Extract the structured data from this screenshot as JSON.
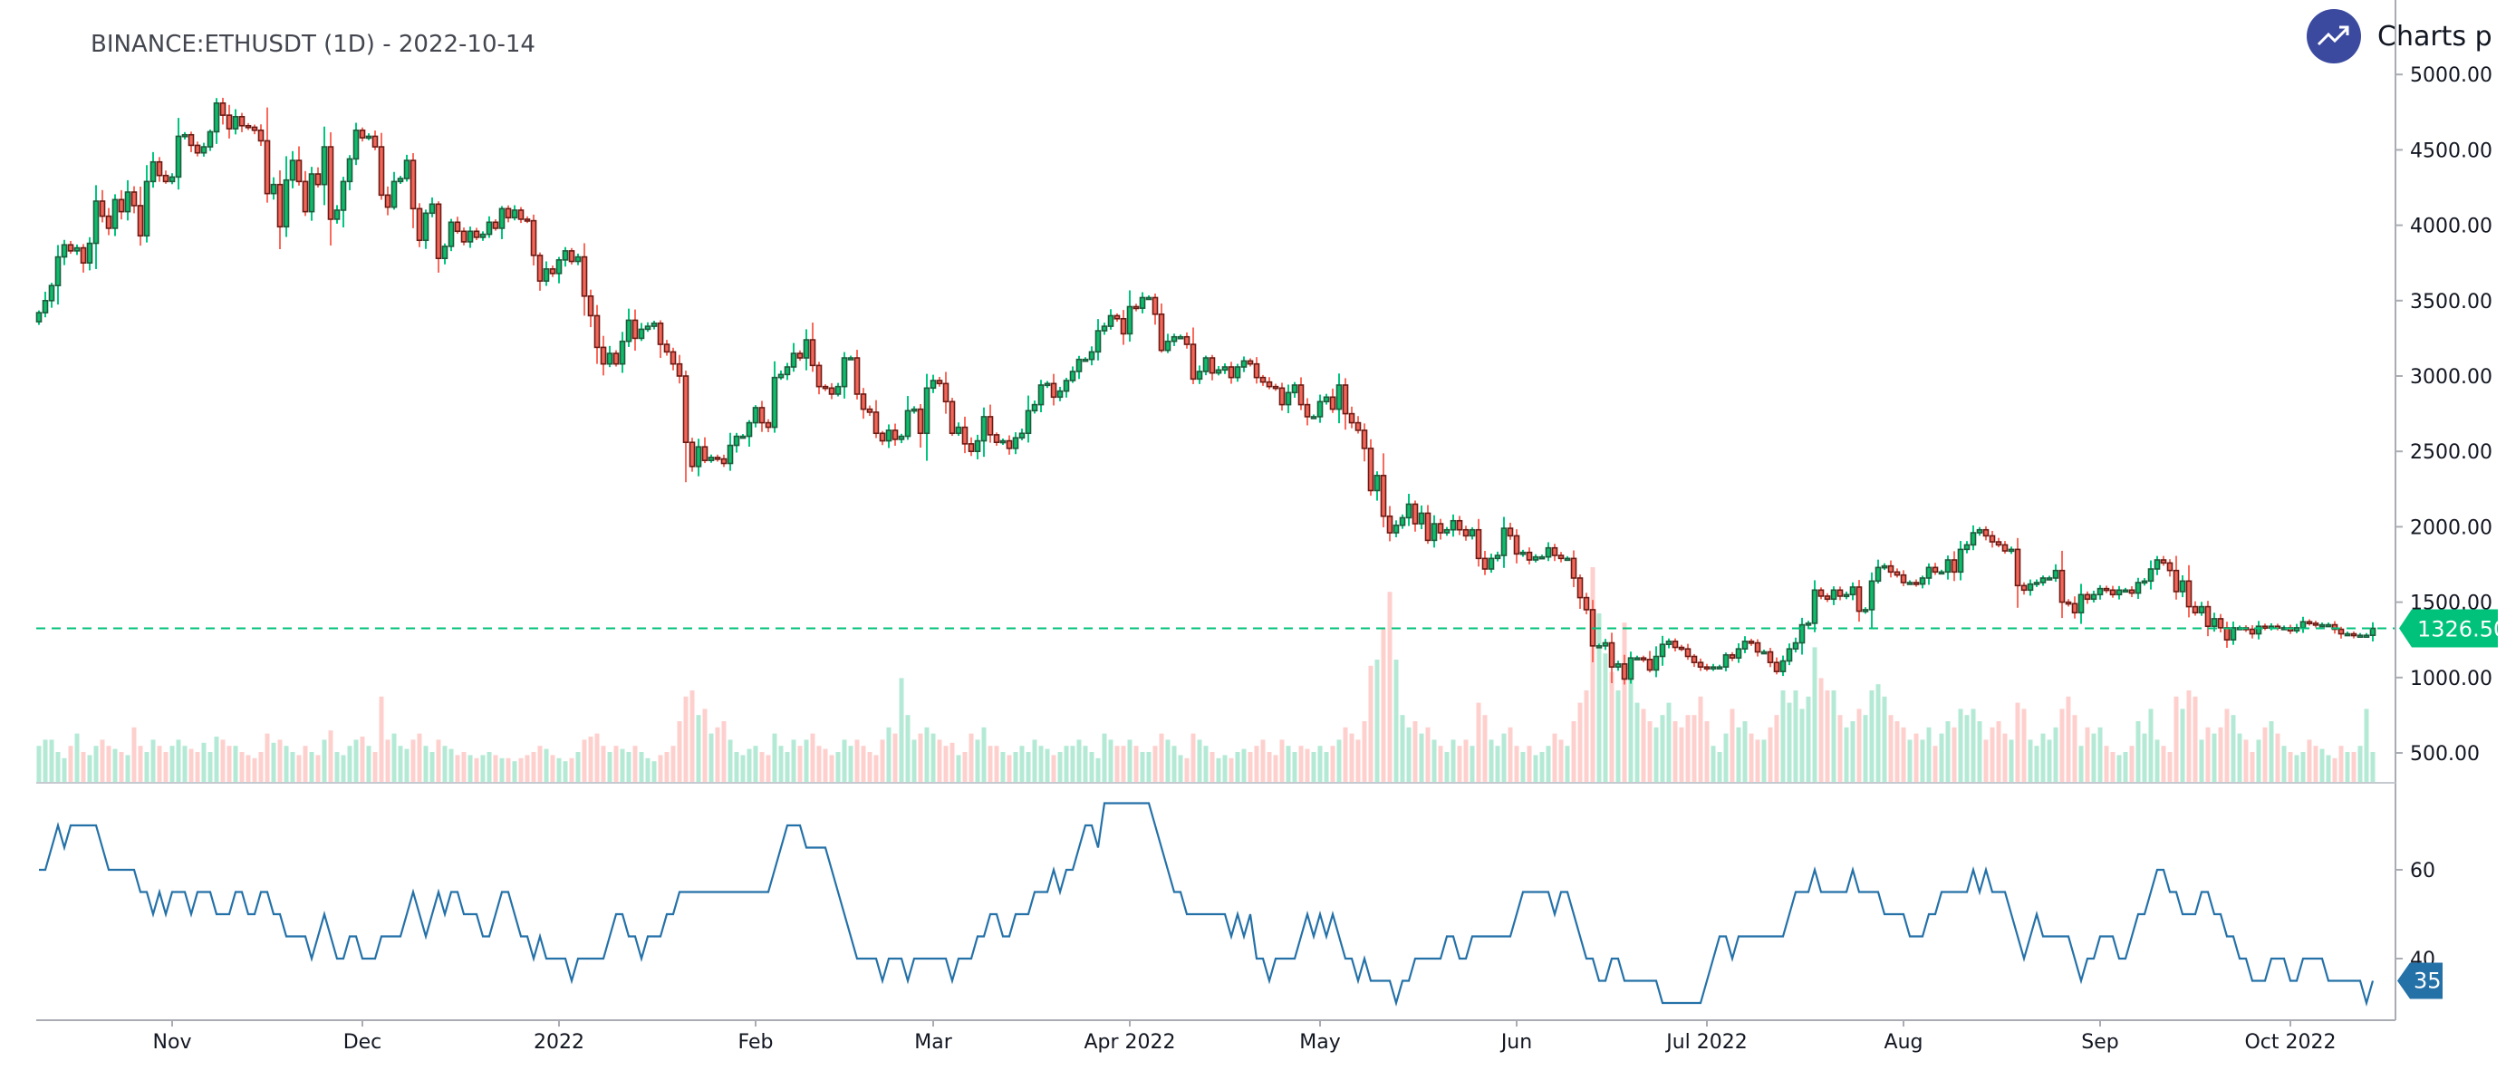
{
  "header": {
    "title": "BINANCE:ETHUSDT (1D) - 2022-10-14",
    "brand": "Charts p",
    "brand_icon": "trending-up-icon"
  },
  "colors": {
    "up": "#0ebc6c",
    "up_border": "#1d5b3c",
    "up_wick": "#00c67e",
    "down": "#f2675a",
    "down_border": "#6b1a14",
    "down_wick": "#f96a5c",
    "vol_up": "#b4ead5",
    "vol_down": "#fdd0ce",
    "indicator": "#2471a8",
    "last_price": "#00c27a",
    "axis": "#a9adb3",
    "brand": "#3b4a9f"
  },
  "chart_data": {
    "type": "candlestick",
    "symbol": "BINANCE:ETHUSDT",
    "interval": "1D",
    "start_date": "2021-10-11",
    "price_axis": {
      "ticks": [
        "5000.00",
        "4500.00",
        "4000.00",
        "3500.00",
        "3000.00",
        "2500.00",
        "2000.00",
        "1500.00",
        "1000.00",
        "500.00"
      ],
      "range": [
        500,
        5000
      ]
    },
    "last_price": "1326.50",
    "x_ticks": [
      {
        "label": "Nov",
        "date": "2021-11-01"
      },
      {
        "label": "Dec",
        "date": "2021-12-01"
      },
      {
        "label": "2022",
        "date": "2022-01-01"
      },
      {
        "label": "Feb",
        "date": "2022-02-01"
      },
      {
        "label": "Mar",
        "date": "2022-03-01"
      },
      {
        "label": "Apr 2022",
        "date": "2022-04-01"
      },
      {
        "label": "May",
        "date": "2022-05-01"
      },
      {
        "label": "Jun",
        "date": "2022-06-01"
      },
      {
        "label": "Jul 2022",
        "date": "2022-07-01"
      },
      {
        "label": "Aug",
        "date": "2022-08-01"
      },
      {
        "label": "Sep",
        "date": "2022-09-01"
      },
      {
        "label": "Oct 2022",
        "date": "2022-10-01"
      }
    ],
    "close": [
      3420,
      3500,
      3600,
      3790,
      3870,
      3830,
      3850,
      3750,
      3880,
      4160,
      4060,
      3980,
      4170,
      4090,
      4220,
      4130,
      3930,
      4290,
      4420,
      4330,
      4290,
      4320,
      4590,
      4600,
      4530,
      4480,
      4520,
      4620,
      4810,
      4730,
      4640,
      4720,
      4660,
      4650,
      4630,
      4560,
      4210,
      4270,
      3990,
      4300,
      4430,
      4290,
      4090,
      4340,
      4270,
      4520,
      4040,
      4100,
      4290,
      4440,
      4630,
      4580,
      4590,
      4520,
      4200,
      4120,
      4290,
      4310,
      4430,
      4110,
      3900,
      4080,
      4140,
      3780,
      3860,
      4020,
      3960,
      3890,
      3960,
      3920,
      3940,
      4020,
      3980,
      4110,
      4050,
      4100,
      4040,
      4030,
      3800,
      3630,
      3710,
      3680,
      3770,
      3830,
      3760,
      3790,
      3530,
      3400,
      3190,
      3080,
      3150,
      3080,
      3230,
      3370,
      3250,
      3310,
      3330,
      3350,
      3210,
      3160,
      3080,
      3000,
      2560,
      2400,
      2530,
      2440,
      2460,
      2450,
      2420,
      2540,
      2600,
      2600,
      2690,
      2790,
      2690,
      2660,
      2990,
      3010,
      3060,
      3150,
      3120,
      3240,
      3070,
      2930,
      2920,
      2880,
      2930,
      3120,
      3120,
      2880,
      2780,
      2760,
      2620,
      2570,
      2640,
      2580,
      2600,
      2770,
      2780,
      2620,
      2920,
      2970,
      2950,
      2830,
      2620,
      2660,
      2550,
      2500,
      2570,
      2730,
      2610,
      2560,
      2570,
      2520,
      2590,
      2620,
      2770,
      2810,
      2940,
      2950,
      2860,
      2900,
      2970,
      3030,
      3110,
      3110,
      3160,
      3300,
      3330,
      3400,
      3380,
      3280,
      3460,
      3450,
      3520,
      3520,
      3410,
      3170,
      3230,
      3260,
      3260,
      3210,
      2980,
      3030,
      3120,
      3020,
      3040,
      3060,
      2990,
      3060,
      3100,
      3080,
      2990,
      2960,
      2930,
      2920,
      2810,
      2890,
      2940,
      2810,
      2730,
      2730,
      2830,
      2860,
      2780,
      2940,
      2750,
      2690,
      2640,
      2520,
      2240,
      2340,
      2070,
      1960,
      2010,
      2060,
      2150,
      2020,
      2090,
      1910,
      2020,
      1960,
      1980,
      2040,
      1980,
      1940,
      1980,
      1790,
      1720,
      1790,
      1810,
      1990,
      1940,
      1820,
      1830,
      1780,
      1800,
      1800,
      1860,
      1810,
      1790,
      1790,
      1660,
      1530,
      1450,
      1210,
      1210,
      1230,
      1070,
      1090,
      990,
      1130,
      1130,
      1120,
      1050,
      1140,
      1220,
      1240,
      1200,
      1190,
      1140,
      1100,
      1070,
      1060,
      1070,
      1070,
      1150,
      1130,
      1190,
      1240,
      1230,
      1170,
      1170,
      1100,
      1040,
      1110,
      1190,
      1230,
      1350,
      1360,
      1580,
      1540,
      1520,
      1580,
      1540,
      1550,
      1600,
      1440,
      1450,
      1640,
      1730,
      1740,
      1700,
      1680,
      1630,
      1630,
      1620,
      1660,
      1730,
      1700,
      1700,
      1780,
      1700,
      1850,
      1880,
      1960,
      1980,
      1940,
      1900,
      1880,
      1840,
      1850,
      1610,
      1580,
      1620,
      1630,
      1660,
      1660,
      1710,
      1500,
      1490,
      1430,
      1550,
      1520,
      1550,
      1590,
      1580,
      1550,
      1580,
      1580,
      1560,
      1630,
      1640,
      1720,
      1780,
      1760,
      1710,
      1570,
      1640,
      1470,
      1430,
      1470,
      1340,
      1390,
      1330,
      1250,
      1330,
      1330,
      1320,
      1290,
      1340,
      1330,
      1340,
      1330,
      1330,
      1310,
      1330,
      1370,
      1360,
      1350,
      1350,
      1350,
      1320,
      1290,
      1290,
      1280,
      1280,
      1280,
      1326.5
    ],
    "volume": [
      12,
      14,
      14,
      10,
      8,
      12,
      16,
      10,
      9,
      12,
      14,
      12,
      11,
      10,
      9,
      18,
      12,
      10,
      14,
      12,
      10,
      12,
      14,
      12,
      11,
      10,
      13,
      10,
      15,
      14,
      12,
      12,
      10,
      9,
      8,
      10,
      16,
      13,
      14,
      12,
      10,
      9,
      12,
      10,
      9,
      14,
      17,
      10,
      9,
      12,
      14,
      15,
      12,
      10,
      28,
      14,
      16,
      12,
      11,
      14,
      16,
      12,
      10,
      14,
      12,
      11,
      9,
      10,
      9,
      8,
      9,
      10,
      9,
      8,
      8,
      7,
      8,
      9,
      10,
      12,
      11,
      9,
      8,
      7,
      8,
      10,
      14,
      15,
      16,
      12,
      10,
      12,
      11,
      10,
      12,
      10,
      8,
      7,
      9,
      10,
      12,
      20,
      28,
      30,
      22,
      24,
      16,
      18,
      20,
      14,
      10,
      9,
      11,
      12,
      10,
      9,
      16,
      12,
      10,
      14,
      12,
      14,
      16,
      12,
      11,
      9,
      10,
      14,
      12,
      14,
      12,
      10,
      9,
      14,
      18,
      16,
      34,
      22,
      14,
      16,
      18,
      16,
      14,
      12,
      13,
      9,
      10,
      16,
      14,
      18,
      12,
      12,
      10,
      9,
      10,
      12,
      10,
      14,
      12,
      11,
      9,
      10,
      12,
      12,
      14,
      12,
      10,
      8,
      16,
      14,
      12,
      12,
      14,
      12,
      10,
      10,
      12,
      16,
      14,
      12,
      9,
      8,
      16,
      14,
      12,
      10,
      8,
      9,
      8,
      10,
      11,
      10,
      12,
      14,
      10,
      9,
      14,
      12,
      10,
      12,
      11,
      10,
      12,
      10,
      12,
      14,
      18,
      16,
      14,
      20,
      38,
      40,
      50,
      62,
      40,
      22,
      18,
      20,
      16,
      18,
      14,
      12,
      10,
      14,
      12,
      14,
      12,
      26,
      22,
      14,
      12,
      16,
      18,
      12,
      10,
      12,
      9,
      10,
      12,
      16,
      14,
      12,
      20,
      26,
      30,
      70,
      55,
      42,
      36,
      30,
      52,
      34,
      26,
      24,
      20,
      18,
      22,
      26,
      20,
      18,
      22,
      22,
      28,
      20,
      12,
      10,
      16,
      24,
      18,
      20,
      16,
      14,
      14,
      18,
      22,
      30,
      26,
      30,
      24,
      28,
      44,
      34,
      30,
      30,
      22,
      18,
      20,
      24,
      22,
      30,
      32,
      28,
      22,
      20,
      18,
      14,
      16,
      14,
      18,
      12,
      16,
      20,
      18,
      24,
      22,
      24,
      20,
      14,
      18,
      20,
      16,
      14,
      26,
      24,
      14,
      12,
      16,
      14,
      18,
      24,
      28,
      22,
      12,
      18,
      16,
      18,
      12,
      10,
      9,
      10,
      12,
      20,
      16,
      24,
      14,
      12,
      10,
      28,
      24,
      30,
      28,
      14,
      18,
      16,
      18,
      24,
      22,
      16,
      14,
      10,
      14,
      18,
      20,
      16,
      12,
      10,
      9,
      10,
      14,
      12,
      11,
      9,
      8,
      12,
      10,
      10,
      12,
      24,
      10
    ],
    "indicator": {
      "ticks": [
        "60",
        "40"
      ],
      "last_value": "35",
      "values": [
        60,
        60,
        65,
        70,
        65,
        70,
        70,
        70,
        70,
        70,
        65,
        60,
        60,
        60,
        60,
        60,
        55,
        55,
        50,
        55,
        50,
        55,
        55,
        55,
        50,
        55,
        55,
        55,
        50,
        50,
        50,
        55,
        55,
        50,
        50,
        55,
        55,
        50,
        50,
        45,
        45,
        45,
        45,
        40,
        45,
        50,
        45,
        40,
        40,
        45,
        45,
        40,
        40,
        40,
        45,
        45,
        45,
        45,
        50,
        55,
        50,
        45,
        50,
        55,
        50,
        55,
        55,
        50,
        50,
        50,
        45,
        45,
        50,
        55,
        55,
        50,
        45,
        45,
        40,
        45,
        40,
        40,
        40,
        40,
        35,
        40,
        40,
        40,
        40,
        40,
        45,
        50,
        50,
        45,
        45,
        40,
        45,
        45,
        45,
        50,
        50,
        55,
        55,
        55,
        55,
        55,
        55,
        55,
        55,
        55,
        55,
        55,
        55,
        55,
        55,
        55,
        60,
        65,
        70,
        70,
        70,
        65,
        65,
        65,
        65,
        60,
        55,
        50,
        45,
        40,
        40,
        40,
        40,
        35,
        40,
        40,
        40,
        35,
        40,
        40,
        40,
        40,
        40,
        40,
        35,
        40,
        40,
        40,
        45,
        45,
        50,
        50,
        45,
        45,
        50,
        50,
        50,
        55,
        55,
        55,
        60,
        55,
        60,
        60,
        65,
        70,
        70,
        65,
        75,
        75,
        75,
        75,
        75,
        75,
        75,
        75,
        70,
        65,
        60,
        55,
        55,
        50,
        50,
        50,
        50,
        50,
        50,
        50,
        45,
        50,
        45,
        50,
        40,
        40,
        35,
        40,
        40,
        40,
        40,
        45,
        50,
        45,
        50,
        45,
        50,
        45,
        40,
        40,
        35,
        40,
        35,
        35,
        35,
        35,
        30,
        35,
        35,
        40,
        40,
        40,
        40,
        40,
        45,
        45,
        40,
        40,
        45,
        45,
        45,
        45,
        45,
        45,
        45,
        50,
        55,
        55,
        55,
        55,
        55,
        50,
        55,
        55,
        50,
        45,
        40,
        40,
        35,
        35,
        40,
        40,
        35,
        35,
        35,
        35,
        35,
        35,
        30,
        30,
        30,
        30,
        30,
        30,
        30,
        35,
        40,
        45,
        45,
        40,
        45,
        45,
        45,
        45,
        45,
        45,
        45,
        45,
        50,
        55,
        55,
        55,
        60,
        55,
        55,
        55,
        55,
        55,
        60,
        55,
        55,
        55,
        55,
        50,
        50,
        50,
        50,
        45,
        45,
        45,
        50,
        50,
        55,
        55,
        55,
        55,
        55,
        60,
        55,
        60,
        55,
        55,
        55,
        50,
        45,
        40,
        45,
        50,
        45,
        45,
        45,
        45,
        45,
        40,
        35,
        40,
        40,
        45,
        45,
        45,
        40,
        40,
        45,
        50,
        50,
        55,
        60,
        60,
        55,
        55,
        50,
        50,
        50,
        55,
        55,
        50,
        50,
        45,
        45,
        40,
        40,
        35,
        35,
        35,
        40,
        40,
        40,
        35,
        35,
        40,
        40,
        40,
        40,
        35,
        35,
        35,
        35,
        35,
        35,
        30,
        35
      ]
    }
  }
}
